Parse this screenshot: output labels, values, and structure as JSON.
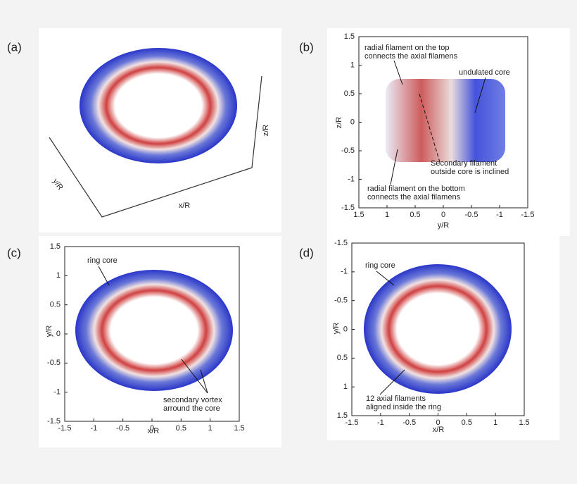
{
  "panels": [
    {
      "label": "(a)",
      "x_label": "x/R",
      "y_label": "y/R",
      "z_label": "z/R"
    },
    {
      "label": "(b)",
      "x_label": "y/R",
      "y_label": "z/R",
      "x_ticks": [
        "1.5",
        "1",
        "0.5",
        "0",
        "-0.5",
        "-1",
        "-1.5"
      ],
      "y_ticks": [
        "1.5",
        "1",
        "0.5",
        "0",
        "-0.5",
        "-1",
        "-1.5"
      ],
      "annotations": [
        {
          "lines": [
            "radial filament on the top",
            "connects the axial filamens"
          ]
        },
        {
          "lines": [
            "undulated core"
          ]
        },
        {
          "lines": [
            "Secondary filament",
            "outside core is inclined"
          ]
        },
        {
          "lines": [
            "radial filament on the bottom",
            "connects the axial filamens"
          ]
        }
      ]
    },
    {
      "label": "(c)",
      "x_label": "x/R",
      "y_label": "y/R",
      "x_ticks": [
        "-1.5",
        "-1",
        "-0.5",
        "0",
        "0.5",
        "1",
        "1.5"
      ],
      "y_ticks": [
        "1.5",
        "1",
        "0.5",
        "0",
        "-0.5",
        "-1",
        "-1.5"
      ],
      "annotations": [
        {
          "lines": [
            "ring core"
          ]
        },
        {
          "lines": [
            "secondary vortex",
            "arround the core"
          ]
        }
      ]
    },
    {
      "label": "(d)",
      "x_label": "x/R",
      "y_label": "y/R",
      "x_ticks": [
        "-1.5",
        "-1",
        "-0.5",
        "0",
        "0.5",
        "1",
        "1.5"
      ],
      "y_ticks": [
        "-1.5",
        "-1",
        "-0.5",
        "0",
        "0.5",
        "1",
        "1.5"
      ],
      "annotations": [
        {
          "lines": [
            "ring core"
          ]
        },
        {
          "lines": [
            "12 axial filaments",
            "aligned inside the ring"
          ]
        }
      ]
    }
  ]
}
